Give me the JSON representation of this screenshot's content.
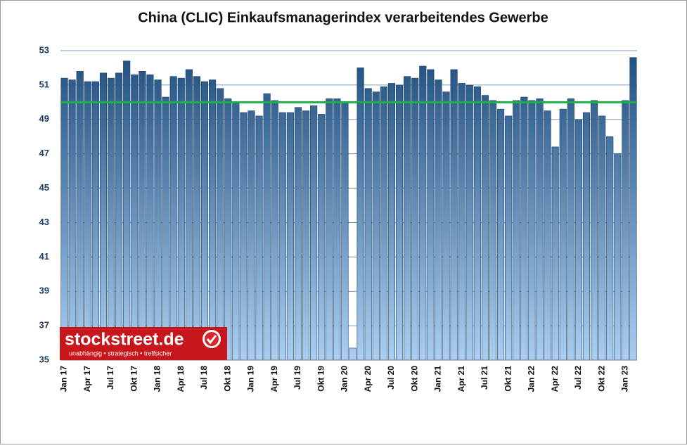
{
  "chart_data": {
    "type": "bar",
    "title": "China (CLIC) Einkaufsmanagerindex verarbeitendes Gewerbe",
    "categories": [
      "Jan 17",
      null,
      null,
      "Apr 17",
      null,
      null,
      "Jul 17",
      null,
      null,
      "Okt 17",
      null,
      null,
      "Jan 18",
      null,
      null,
      "Apr 18",
      null,
      null,
      "Jul 18",
      null,
      null,
      "Okt 18",
      null,
      null,
      "Jan 19",
      null,
      null,
      "Apr 19",
      null,
      null,
      "Jul 19",
      null,
      null,
      "Okt 19",
      null,
      null,
      "Jan 20",
      null,
      null,
      "Apr 20",
      null,
      null,
      "Jul 20",
      null,
      null,
      "Okt 20",
      null,
      null,
      "Jan 21",
      null,
      null,
      "Apr 21",
      null,
      null,
      "Jul 21",
      null,
      null,
      "Okt 21",
      null,
      null,
      "Jan 22",
      null,
      null,
      "Apr 22",
      null,
      null,
      "Jul 22",
      null,
      null,
      "Okt 22",
      null,
      null,
      "Jan 23",
      null
    ],
    "values": [
      51.4,
      51.3,
      51.8,
      51.2,
      51.2,
      51.7,
      51.4,
      51.7,
      52.4,
      51.6,
      51.8,
      51.6,
      51.3,
      50.3,
      51.5,
      51.4,
      51.9,
      51.5,
      51.2,
      51.3,
      50.8,
      50.2,
      50.0,
      49.4,
      49.5,
      49.2,
      50.5,
      50.1,
      49.4,
      49.4,
      49.7,
      49.5,
      49.8,
      49.3,
      50.2,
      50.2,
      50.0,
      35.7,
      52.0,
      50.8,
      50.6,
      50.9,
      51.1,
      51.0,
      51.5,
      51.4,
      52.1,
      51.9,
      51.3,
      50.6,
      51.9,
      51.1,
      51.0,
      50.9,
      50.4,
      50.1,
      49.6,
      49.2,
      50.1,
      50.3,
      50.1,
      50.2,
      49.5,
      47.4,
      49.6,
      50.2,
      49.0,
      49.4,
      50.1,
      49.2,
      48.0,
      47.0,
      50.1,
      52.6
    ],
    "gradient": [
      "#1f4e7f",
      "#a9cef1"
    ],
    "ylim": [
      35,
      53
    ],
    "yticks": [
      35,
      37,
      39,
      41,
      43,
      45,
      47,
      49,
      51,
      53
    ],
    "grid": true,
    "reference_line": {
      "value": 50,
      "color": "#1fb04a"
    },
    "watermark": {
      "name": "stockstreet.de",
      "tagline": "unabhängig • strategisch • treffsicher"
    }
  }
}
